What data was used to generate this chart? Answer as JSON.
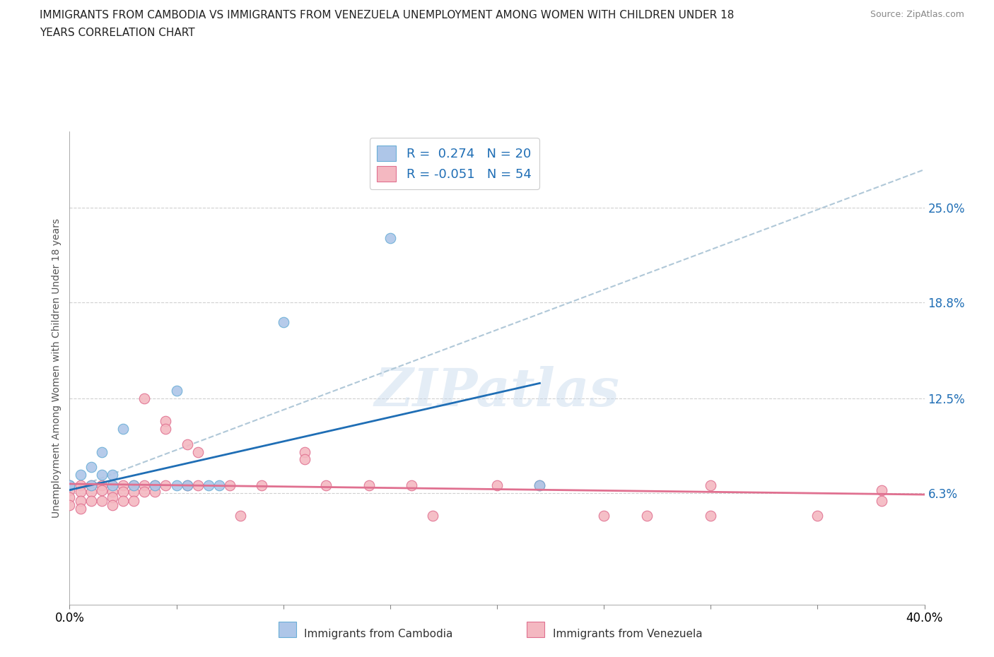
{
  "title_line1": "IMMIGRANTS FROM CAMBODIA VS IMMIGRANTS FROM VENEZUELA UNEMPLOYMENT AMONG WOMEN WITH CHILDREN UNDER 18",
  "title_line2": "YEARS CORRELATION CHART",
  "source": "Source: ZipAtlas.com",
  "ylabel": "Unemployment Among Women with Children Under 18 years",
  "xlim": [
    0.0,
    0.4
  ],
  "ylim": [
    -0.01,
    0.3
  ],
  "yticks": [
    0.063,
    0.125,
    0.188,
    0.25
  ],
  "ytick_labels": [
    "6.3%",
    "12.5%",
    "18.8%",
    "25.0%"
  ],
  "legend_r1": "R =  0.274   N = 20",
  "legend_r2": "R = -0.051   N = 54",
  "watermark": "ZIPatlas",
  "cambodia_color": "#aec6e8",
  "venezuela_color": "#f4b8c1",
  "cambodia_edge": "#6aaed6",
  "venezuela_edge": "#e07090",
  "trend_cambodia_color": "#1f6eb5",
  "trend_venezuela_color": "#e07090",
  "trend_dashed_color": "#b0c8d8",
  "cambodia_scatter": [
    [
      0.0,
      0.068
    ],
    [
      0.0,
      0.068
    ],
    [
      0.005,
      0.075
    ],
    [
      0.01,
      0.08
    ],
    [
      0.01,
      0.068
    ],
    [
      0.015,
      0.09
    ],
    [
      0.015,
      0.075
    ],
    [
      0.02,
      0.068
    ],
    [
      0.02,
      0.075
    ],
    [
      0.025,
      0.105
    ],
    [
      0.03,
      0.068
    ],
    [
      0.04,
      0.068
    ],
    [
      0.05,
      0.068
    ],
    [
      0.055,
      0.068
    ],
    [
      0.065,
      0.068
    ],
    [
      0.07,
      0.068
    ],
    [
      0.22,
      0.068
    ],
    [
      0.05,
      0.13
    ],
    [
      0.1,
      0.175
    ],
    [
      0.15,
      0.23
    ]
  ],
  "venezuela_scatter": [
    [
      0.0,
      0.068
    ],
    [
      0.0,
      0.065
    ],
    [
      0.0,
      0.06
    ],
    [
      0.0,
      0.055
    ],
    [
      0.005,
      0.068
    ],
    [
      0.005,
      0.064
    ],
    [
      0.005,
      0.058
    ],
    [
      0.005,
      0.053
    ],
    [
      0.01,
      0.068
    ],
    [
      0.01,
      0.064
    ],
    [
      0.01,
      0.058
    ],
    [
      0.015,
      0.068
    ],
    [
      0.015,
      0.065
    ],
    [
      0.015,
      0.058
    ],
    [
      0.02,
      0.068
    ],
    [
      0.02,
      0.064
    ],
    [
      0.02,
      0.06
    ],
    [
      0.02,
      0.055
    ],
    [
      0.025,
      0.068
    ],
    [
      0.025,
      0.064
    ],
    [
      0.025,
      0.058
    ],
    [
      0.03,
      0.068
    ],
    [
      0.03,
      0.064
    ],
    [
      0.03,
      0.058
    ],
    [
      0.035,
      0.125
    ],
    [
      0.035,
      0.068
    ],
    [
      0.035,
      0.064
    ],
    [
      0.04,
      0.068
    ],
    [
      0.04,
      0.064
    ],
    [
      0.045,
      0.068
    ],
    [
      0.045,
      0.11
    ],
    [
      0.045,
      0.105
    ],
    [
      0.055,
      0.068
    ],
    [
      0.055,
      0.095
    ],
    [
      0.06,
      0.09
    ],
    [
      0.06,
      0.068
    ],
    [
      0.075,
      0.068
    ],
    [
      0.09,
      0.068
    ],
    [
      0.11,
      0.09
    ],
    [
      0.11,
      0.085
    ],
    [
      0.12,
      0.068
    ],
    [
      0.14,
      0.068
    ],
    [
      0.16,
      0.068
    ],
    [
      0.17,
      0.048
    ],
    [
      0.22,
      0.068
    ],
    [
      0.25,
      0.048
    ],
    [
      0.27,
      0.048
    ],
    [
      0.3,
      0.068
    ],
    [
      0.3,
      0.048
    ],
    [
      0.35,
      0.048
    ],
    [
      0.38,
      0.065
    ],
    [
      0.38,
      0.058
    ],
    [
      0.2,
      0.068
    ],
    [
      0.08,
      0.048
    ]
  ],
  "cam_trend": [
    0.0,
    0.065,
    0.22,
    0.135
  ],
  "ven_trend": [
    0.0,
    0.069,
    0.4,
    0.062
  ],
  "dashed_trend": [
    0.0,
    0.065,
    0.4,
    0.275
  ]
}
